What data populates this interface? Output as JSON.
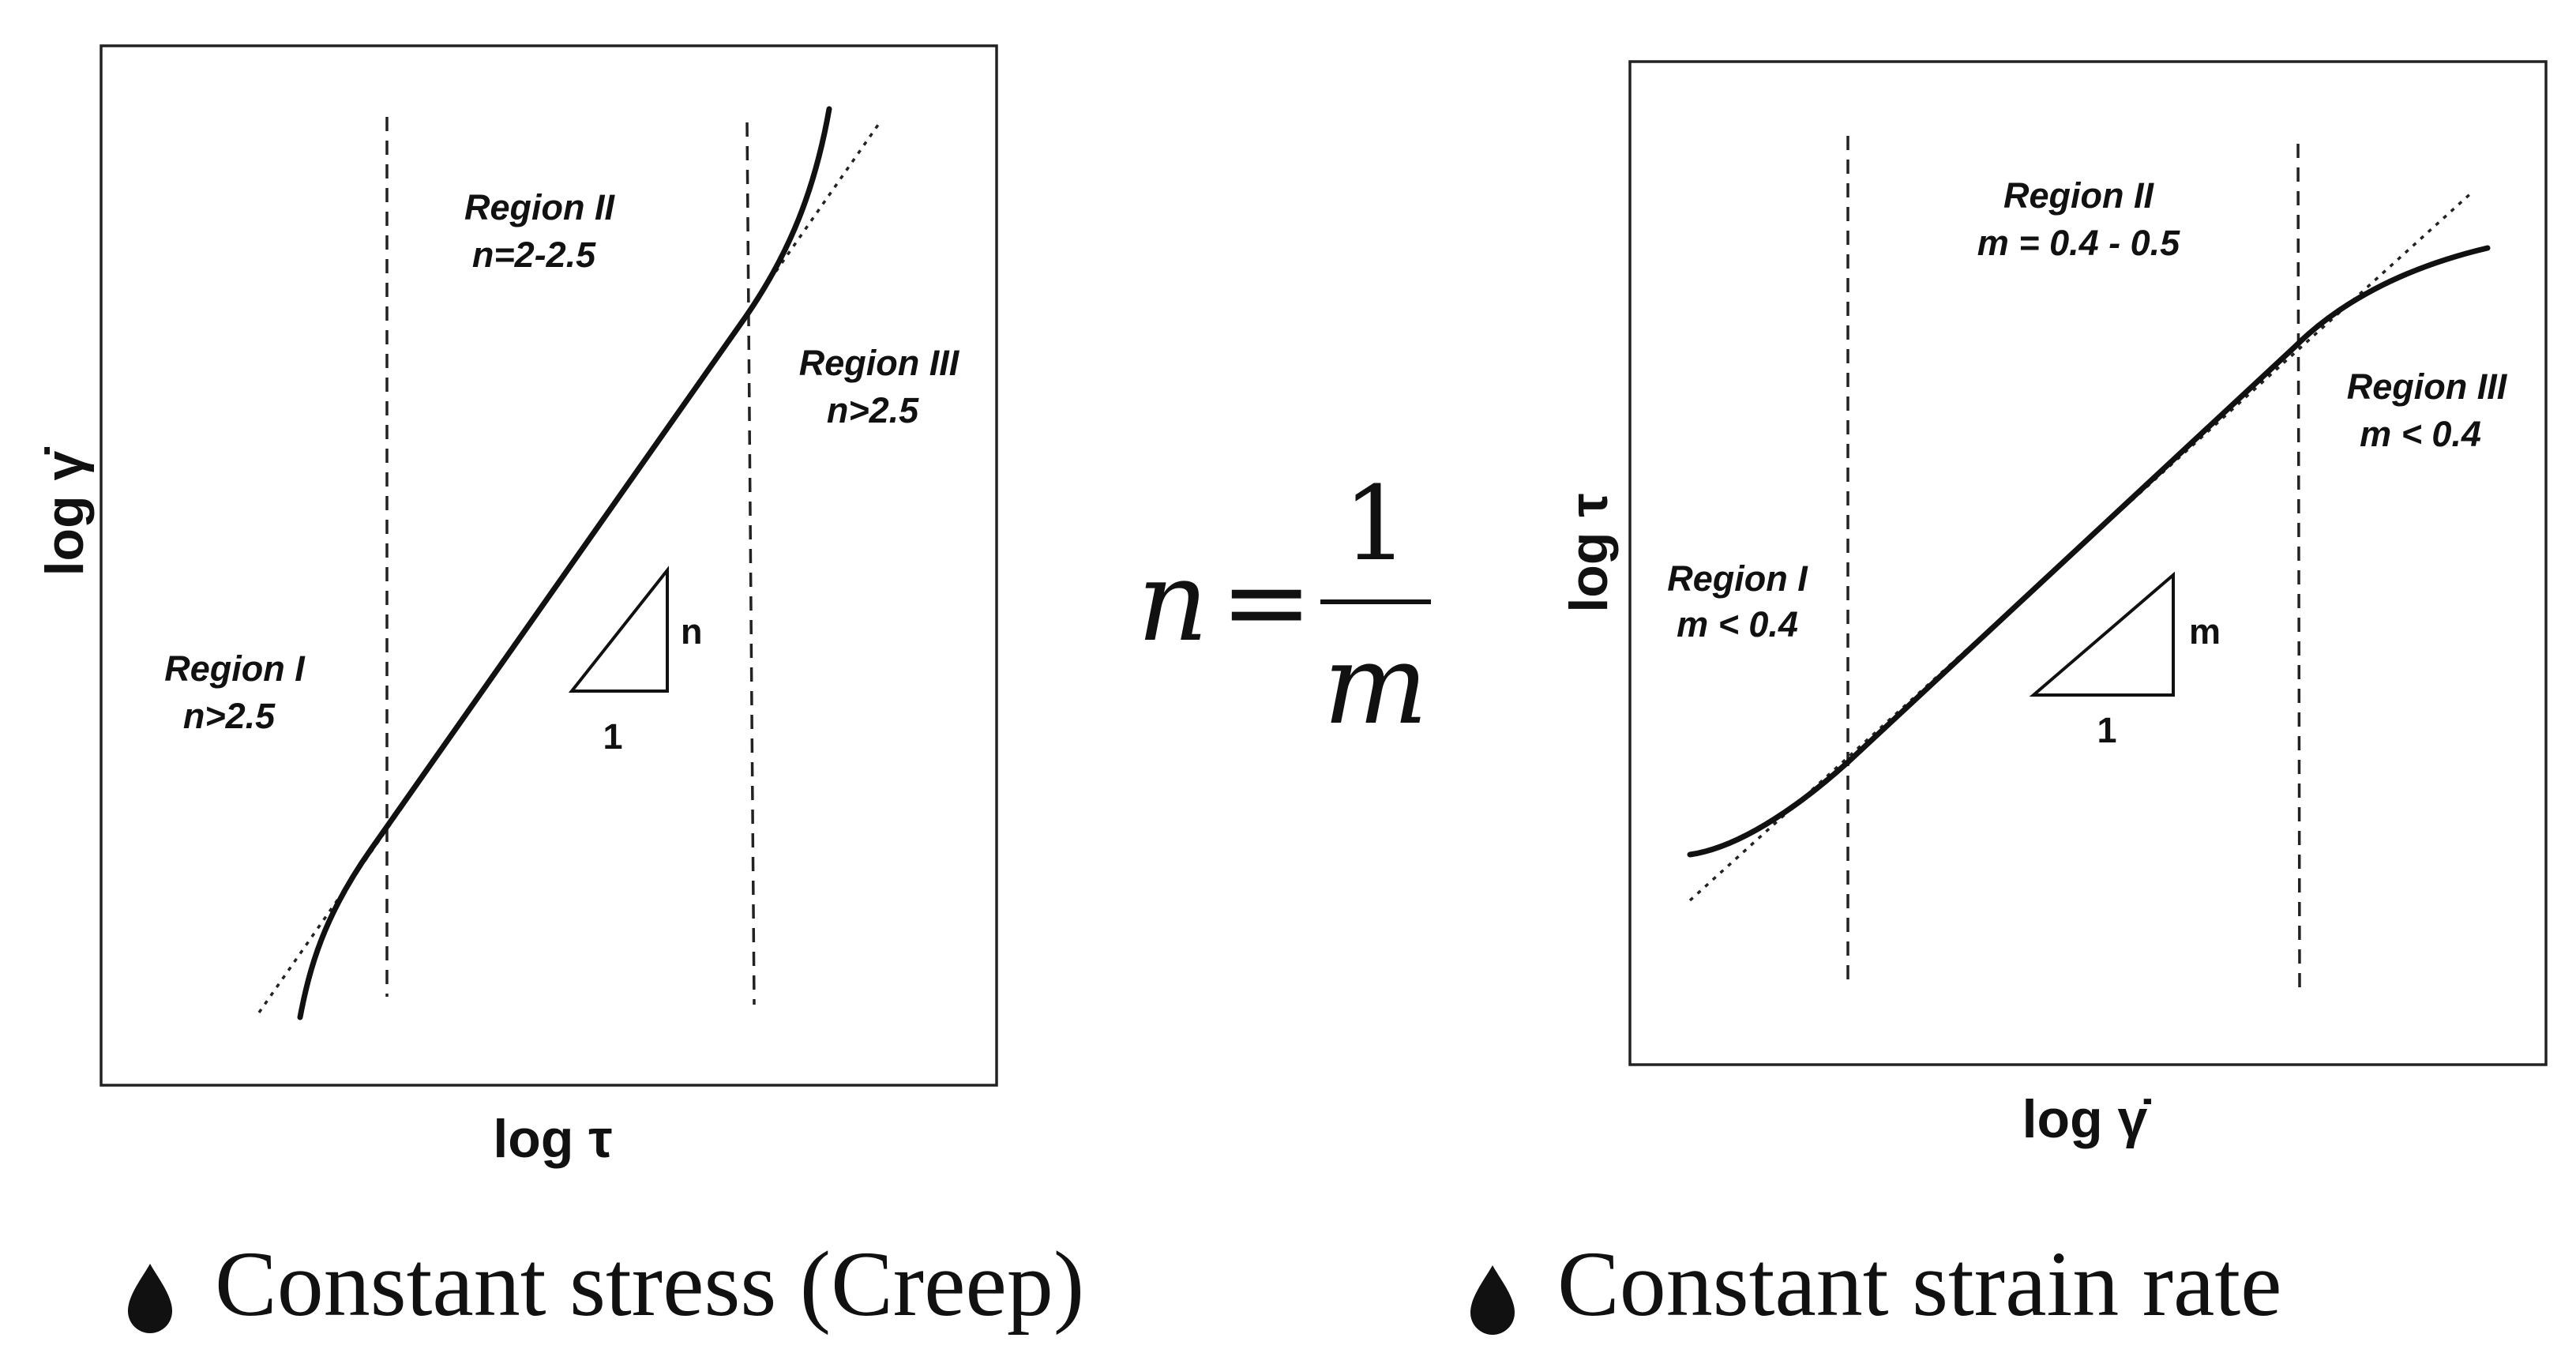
{
  "left_plot": {
    "x_axis_label": "log τ",
    "y_axis_label": "log γ̇",
    "region_1": {
      "title": "Region I",
      "value": "n>2.5"
    },
    "region_2": {
      "title": "Region II",
      "value": "n=2-2.5"
    },
    "region_3": {
      "title": "Region III",
      "value": "n>2.5"
    },
    "slope_rise_label": "n",
    "slope_run_label": "1"
  },
  "right_plot": {
    "x_axis_label": "log γ̇",
    "y_axis_label": "log τ",
    "region_1": {
      "title": "Region I",
      "value": "m < 0.4"
    },
    "region_2": {
      "title": "Region II",
      "value": "m = 0.4 - 0.5"
    },
    "region_3": {
      "title": "Region III",
      "value": "m < 0.4"
    },
    "slope_rise_label": "m",
    "slope_run_label": "1"
  },
  "formula": {
    "lhs": "n",
    "equals": "=",
    "numerator": "1",
    "denominator": "m"
  },
  "captions": {
    "left": "Constant stress (Creep)",
    "right": "Constant strain rate"
  },
  "bullet_icon": "drop-bullet-icon"
}
